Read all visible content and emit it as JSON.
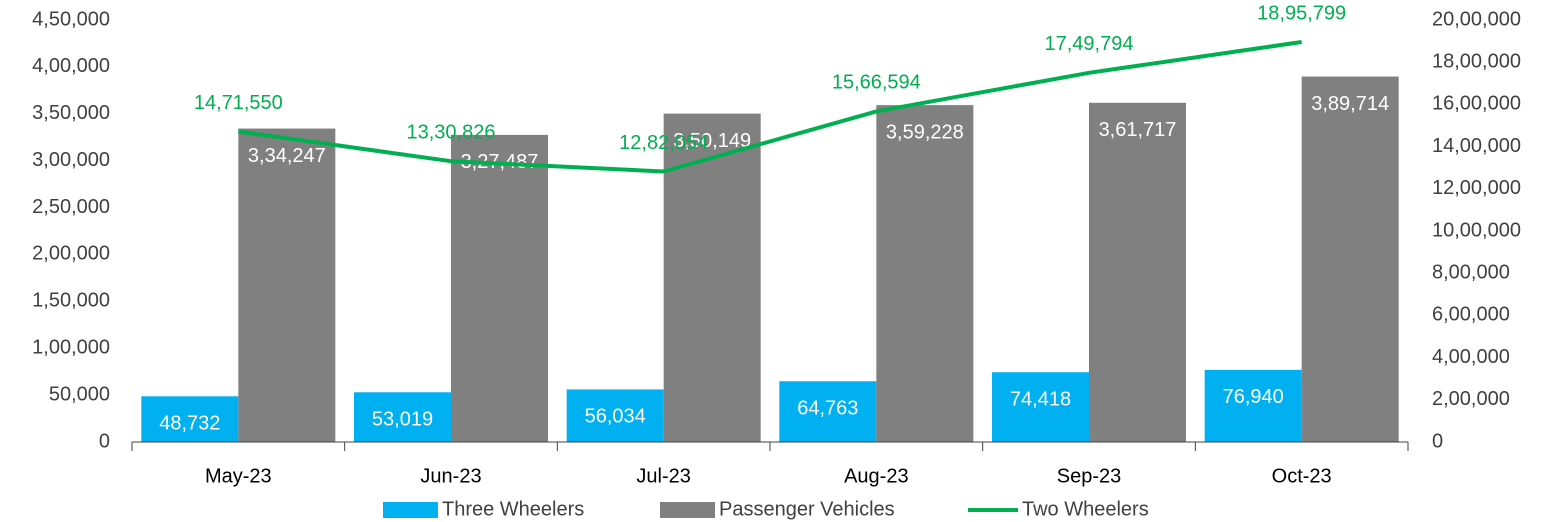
{
  "chart_data": {
    "type": "bar",
    "categories": [
      "May-23",
      "Jun-23",
      "Jul-23",
      "Aug-23",
      "Sep-23",
      "Oct-23"
    ],
    "series": [
      {
        "name": "Three Wheelers",
        "color": "#00b0f0",
        "values": [
          48732,
          53019,
          56034,
          64763,
          74418,
          76940
        ],
        "value_labels": [
          "48,732",
          "53,019",
          "56,034",
          "64,763",
          "74,418",
          "76,940"
        ]
      },
      {
        "name": "Passenger Vehicles",
        "color": "#808080",
        "values": [
          334247,
          327487,
          350149,
          359228,
          361717,
          389714
        ],
        "value_labels": [
          "3,34,247",
          "3,27,487",
          "3,50,149",
          "3,59,228",
          "3,61,717",
          "3,89,714"
        ]
      },
      {
        "name": "Two Wheelers",
        "type": "line",
        "axis": "y2",
        "color": "#00b050",
        "values": [
          1471550,
          1330826,
          1282054,
          1566594,
          1749794,
          1895799
        ],
        "value_labels": [
          "14,71,550",
          "13,30,826",
          "12,82,054",
          "15,66,594",
          "17,49,794",
          "18,95,799"
        ]
      }
    ],
    "ylim": [
      0,
      450000
    ],
    "yticks": [
      0,
      {
        "value": 50000,
        "label": "50,000"
      },
      {
        "value": 100000,
        "label": "1,00,000"
      },
      {
        "value": 150000,
        "label": "1,50,000"
      },
      {
        "value": 200000,
        "label": "2,00,000"
      },
      {
        "value": 250000,
        "label": "2,50,000"
      },
      {
        "value": 300000,
        "label": "3,00,000"
      },
      {
        "value": 350000,
        "label": "3,50,000"
      },
      {
        "value": 400000,
        "label": "4,00,000"
      },
      {
        "value": 450000,
        "label": "4,50,000"
      }
    ],
    "y2lim": [
      0,
      2000000
    ],
    "y2ticks": [
      0,
      {
        "value": 200000,
        "label": "2,00,000"
      },
      {
        "value": 400000,
        "label": "4,00,000"
      },
      {
        "value": 600000,
        "label": "6,00,000"
      },
      {
        "value": 800000,
        "label": "8,00,000"
      },
      {
        "value": 1000000,
        "label": "10,00,000"
      },
      {
        "value": 1200000,
        "label": "12,00,000"
      },
      {
        "value": 1400000,
        "label": "14,00,000"
      },
      {
        "value": 1600000,
        "label": "16,00,000"
      },
      {
        "value": 1800000,
        "label": "18,00,000"
      },
      {
        "value": 2000000,
        "label": "20,00,000"
      }
    ],
    "legend": "bottom"
  }
}
